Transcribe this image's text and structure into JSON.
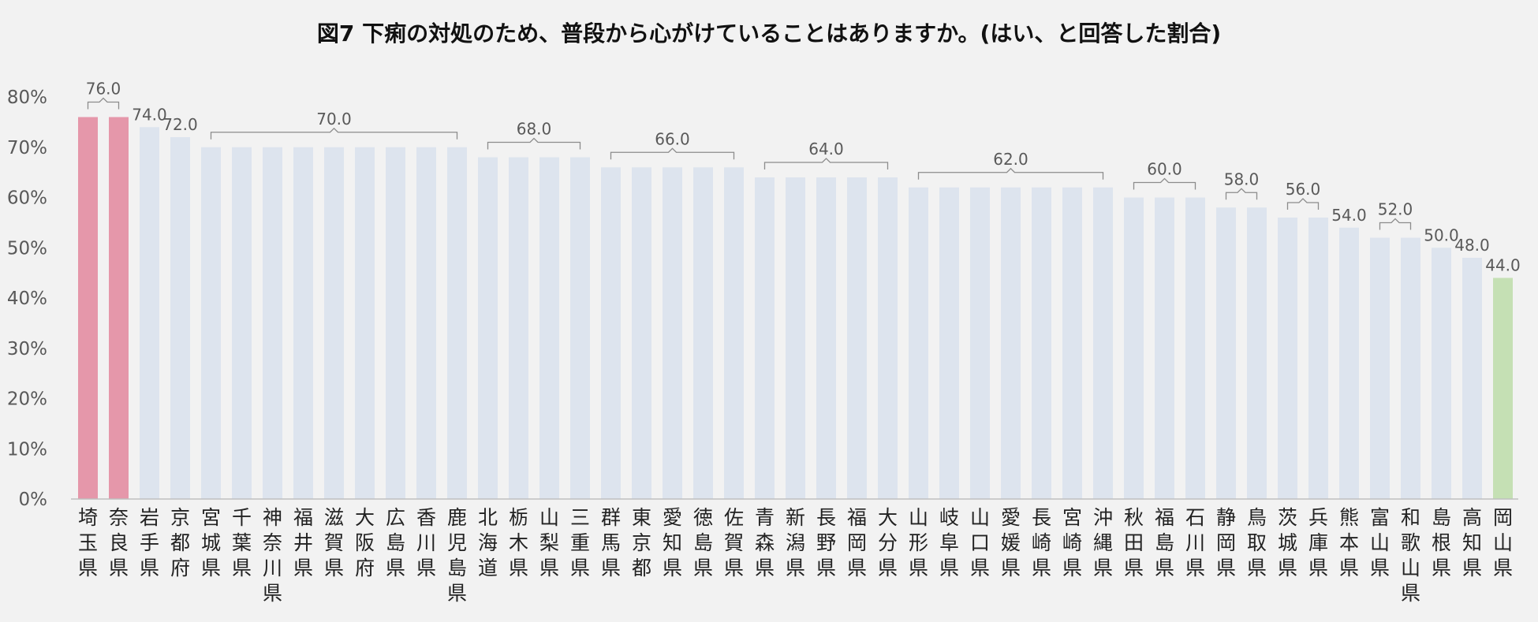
{
  "chart_data": {
    "type": "bar",
    "title": "図7 下痢の対処のため、普段から心がけていることはありますか。(はい、と回答した割合)",
    "xlabel": "",
    "ylabel": "",
    "ylim": [
      0,
      80
    ],
    "yticks": [
      0,
      10,
      20,
      30,
      40,
      50,
      60,
      70,
      80
    ],
    "ytick_labels": [
      "0%",
      "10%",
      "20%",
      "30%",
      "40%",
      "50%",
      "60%",
      "70%",
      "80%"
    ],
    "grid": false,
    "legend": "none",
    "categories": [
      "埼玉県",
      "奈良県",
      "岩手県",
      "京都府",
      "宮城県",
      "千葉県",
      "神奈川県",
      "福井県",
      "滋賀県",
      "大阪府",
      "広島県",
      "香川県",
      "鹿児島県",
      "北海道",
      "栃木県",
      "山梨県",
      "三重県",
      "群馬県",
      "東京都",
      "愛知県",
      "徳島県",
      "佐賀県",
      "青森県",
      "新潟県",
      "長野県",
      "福岡県",
      "大分県",
      "山形県",
      "岐阜県",
      "山口県",
      "愛媛県",
      "長崎県",
      "宮崎県",
      "沖縄県",
      "秋田県",
      "福島県",
      "石川県",
      "静岡県",
      "鳥取県",
      "茨城県",
      "兵庫県",
      "熊本県",
      "富山県",
      "和歌山県",
      "島根県",
      "高知県",
      "岡山県"
    ],
    "values": [
      76,
      76,
      74,
      72,
      70,
      70,
      70,
      70,
      70,
      70,
      70,
      70,
      70,
      68,
      68,
      68,
      68,
      66,
      66,
      66,
      66,
      66,
      64,
      64,
      64,
      64,
      64,
      62,
      62,
      62,
      62,
      62,
      62,
      62,
      60,
      60,
      60,
      58,
      58,
      56,
      56,
      54,
      52,
      52,
      50,
      48,
      44
    ],
    "colors": {
      "highest": "#e597aa",
      "lowest": "#c5e0b4",
      "default": "#dde4ee"
    },
    "annotations": [
      {
        "text": "76.0",
        "from": 0,
        "to": 1,
        "bracket": true
      },
      {
        "text": "74.0",
        "from": 2,
        "to": 2,
        "bracket": false
      },
      {
        "text": "72.0",
        "from": 3,
        "to": 3,
        "bracket": false
      },
      {
        "text": "70.0",
        "from": 4,
        "to": 12,
        "bracket": true
      },
      {
        "text": "68.0",
        "from": 13,
        "to": 16,
        "bracket": true
      },
      {
        "text": "66.0",
        "from": 17,
        "to": 21,
        "bracket": true
      },
      {
        "text": "64.0",
        "from": 22,
        "to": 26,
        "bracket": true
      },
      {
        "text": "62.0",
        "from": 27,
        "to": 33,
        "bracket": true
      },
      {
        "text": "60.0",
        "from": 34,
        "to": 36,
        "bracket": true
      },
      {
        "text": "58.0",
        "from": 37,
        "to": 38,
        "bracket": true
      },
      {
        "text": "56.0",
        "from": 39,
        "to": 40,
        "bracket": true
      },
      {
        "text": "54.0",
        "from": 41,
        "to": 41,
        "bracket": false
      },
      {
        "text": "52.0",
        "from": 42,
        "to": 43,
        "bracket": true
      },
      {
        "text": "50.0",
        "from": 44,
        "to": 44,
        "bracket": false
      },
      {
        "text": "48.0",
        "from": 45,
        "to": 45,
        "bracket": false
      },
      {
        "text": "44.0",
        "from": 46,
        "to": 46,
        "bracket": false
      }
    ]
  }
}
